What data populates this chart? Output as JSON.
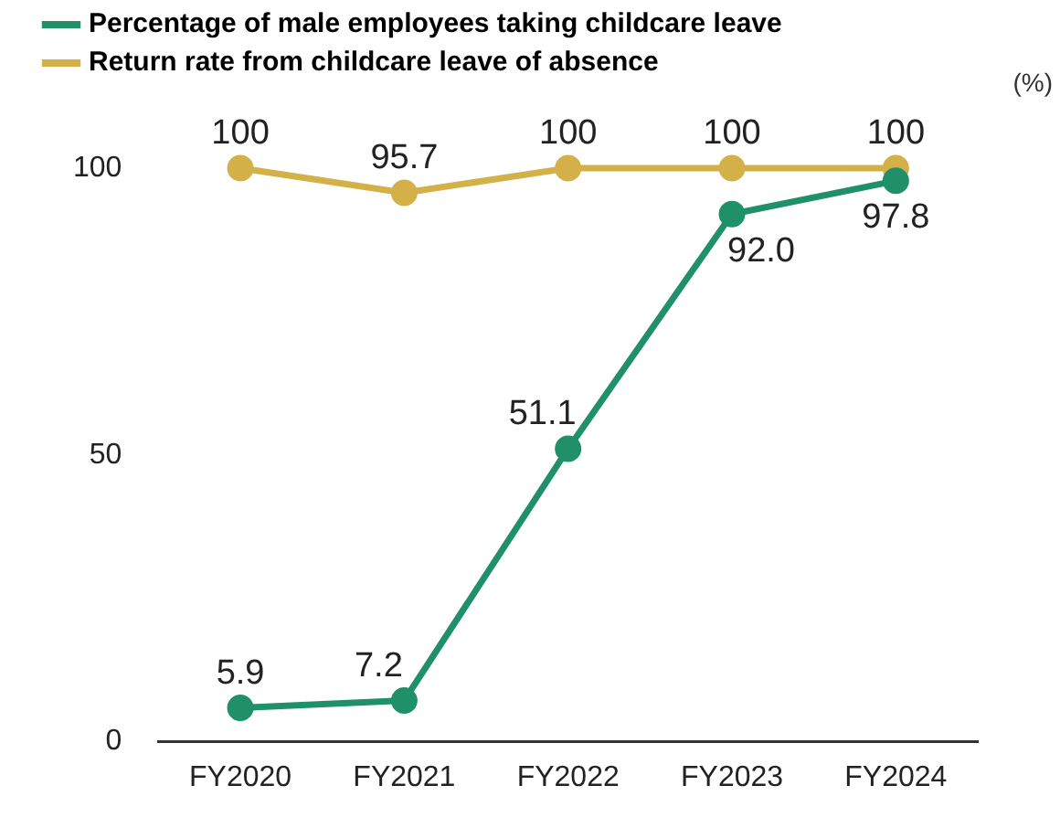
{
  "chart_data": {
    "type": "line",
    "ylabel": "(%)",
    "categories": [
      "FY2020",
      "FY2021",
      "FY2022",
      "FY2023",
      "FY2024"
    ],
    "series": [
      {
        "name": "Percentage of male employees taking childcare leave",
        "color": "#1f9068",
        "values": [
          5.9,
          7.2,
          51.1,
          92.0,
          97.8
        ],
        "value_labels": [
          "5.9",
          "7.2",
          "51.1",
          "92.0",
          "97.8"
        ]
      },
      {
        "name": "Return rate from childcare leave of absence",
        "color": "#d4b048",
        "values": [
          100,
          95.7,
          100,
          100,
          100
        ],
        "value_labels": [
          "100",
          "95.7",
          "100",
          "100",
          "100"
        ]
      }
    ],
    "ylim": [
      0,
      100
    ],
    "yticks": [
      0,
      50,
      100
    ],
    "grid": false,
    "legend": "top left",
    "marker": "circle",
    "line_style": "solid"
  }
}
